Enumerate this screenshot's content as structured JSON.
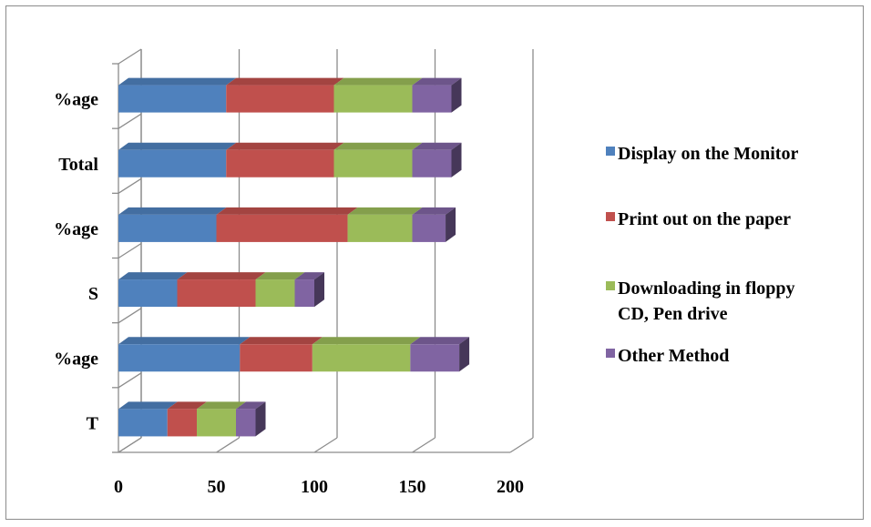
{
  "chart_data": {
    "type": "bar",
    "orientation": "horizontal",
    "stacked": true,
    "three_d": true,
    "categories": [
      "T",
      "%age",
      "S",
      "%age",
      "Total",
      "%age"
    ],
    "series": [
      {
        "name": "Display on the Monitor",
        "color": "#4f81bd",
        "values": [
          25,
          62,
          30,
          50,
          55,
          55
        ]
      },
      {
        "name": "Print out on the paper",
        "color": "#c0504d",
        "values": [
          15,
          37,
          40,
          67,
          55,
          55
        ]
      },
      {
        "name": "Downloading in floppy CD, Pen drive",
        "color": "#9bbb59",
        "values": [
          20,
          50,
          20,
          33,
          40,
          40
        ]
      },
      {
        "name": "Other Method",
        "color": "#8064a2",
        "values": [
          10,
          25,
          10,
          17,
          20,
          20
        ]
      }
    ],
    "legend": {
      "position": "right",
      "entries": [
        [
          "Display on the Monitor"
        ],
        [
          "Print out on the paper"
        ],
        [
          "Downloading in floppy",
          "CD, Pen drive"
        ],
        [
          "Other Method"
        ]
      ]
    },
    "x_ticks": [
      "0",
      "50",
      "100",
      "150",
      "200"
    ],
    "xlim": [
      0,
      200
    ],
    "grid": true,
    "xlabel": "",
    "ylabel": ""
  }
}
